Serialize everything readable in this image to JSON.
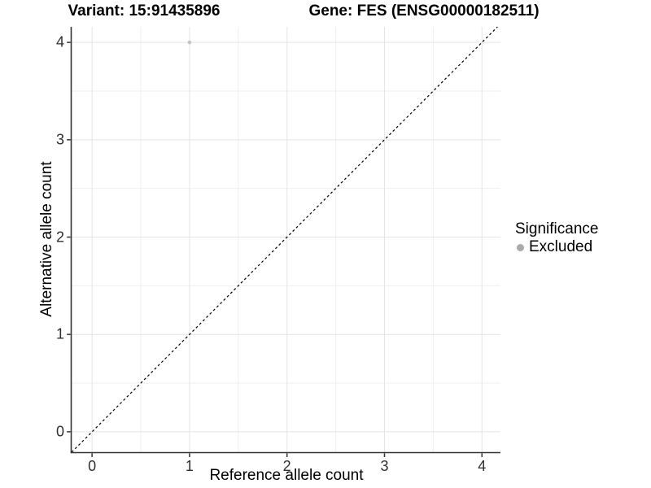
{
  "titles": {
    "variant": "Variant: 15:91435896",
    "gene": "Gene: FES (ENSG00000182511)"
  },
  "axes": {
    "x_label": "Reference allele count",
    "y_label": "Alternative allele count"
  },
  "legend": {
    "title": "Significance",
    "items": [
      {
        "label": "Excluded",
        "color": "#aaaaaa"
      }
    ]
  },
  "chart_data": {
    "type": "scatter",
    "title": "Variant: 15:91435896   Gene: FES (ENSG00000182511)",
    "xlabel": "Reference allele count",
    "ylabel": "Alternative allele count",
    "xlim": [
      -0.21,
      4.19
    ],
    "ylim": [
      -0.21,
      4.16
    ],
    "x_ticks": [
      "0",
      "1",
      "2",
      "3",
      "4"
    ],
    "x_tick_values": [
      0,
      1,
      2,
      3,
      4
    ],
    "y_ticks": [
      "0",
      "1",
      "2",
      "3",
      "4"
    ],
    "y_tick_values": [
      0,
      1,
      2,
      3,
      4
    ],
    "minor_x": [
      0.5,
      1.5,
      2.5,
      3.5
    ],
    "minor_y": [
      0.5,
      1.5,
      2.5,
      3.5
    ],
    "grid": "major+minor",
    "legend_position": "right",
    "series": [
      {
        "name": "Excluded",
        "points": [
          {
            "x": 1,
            "y": 4
          }
        ]
      }
    ],
    "reference_line": {
      "slope": 1,
      "intercept": 0,
      "style": "dashed"
    },
    "colors": {
      "point": "#c3c3c3",
      "legend_point": "#aaaaaa",
      "grid_major": "#e4e4e4",
      "grid_minor": "#efefef",
      "axis_line": "#333333",
      "tick_mark": "#333333",
      "tick_text": "#303030",
      "ref_line": "#000000"
    }
  }
}
